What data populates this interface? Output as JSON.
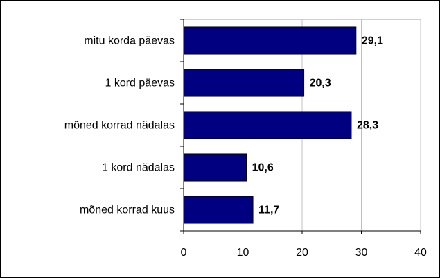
{
  "chart_data": {
    "type": "bar",
    "orientation": "horizontal",
    "categories": [
      "mitu korda päevas",
      "1 kord päevas",
      "mõned korrad nädalas",
      "1 kord nädalas",
      "mõned korrad kuus"
    ],
    "values": [
      29.1,
      20.3,
      28.3,
      10.6,
      11.7
    ],
    "value_labels": [
      "29,1",
      "20,3",
      "28,3",
      "10,6",
      "11,7"
    ],
    "color": "#000080",
    "xlim": [
      0,
      40
    ],
    "xticks": [
      0,
      10,
      20,
      30,
      40
    ],
    "grid": true
  }
}
